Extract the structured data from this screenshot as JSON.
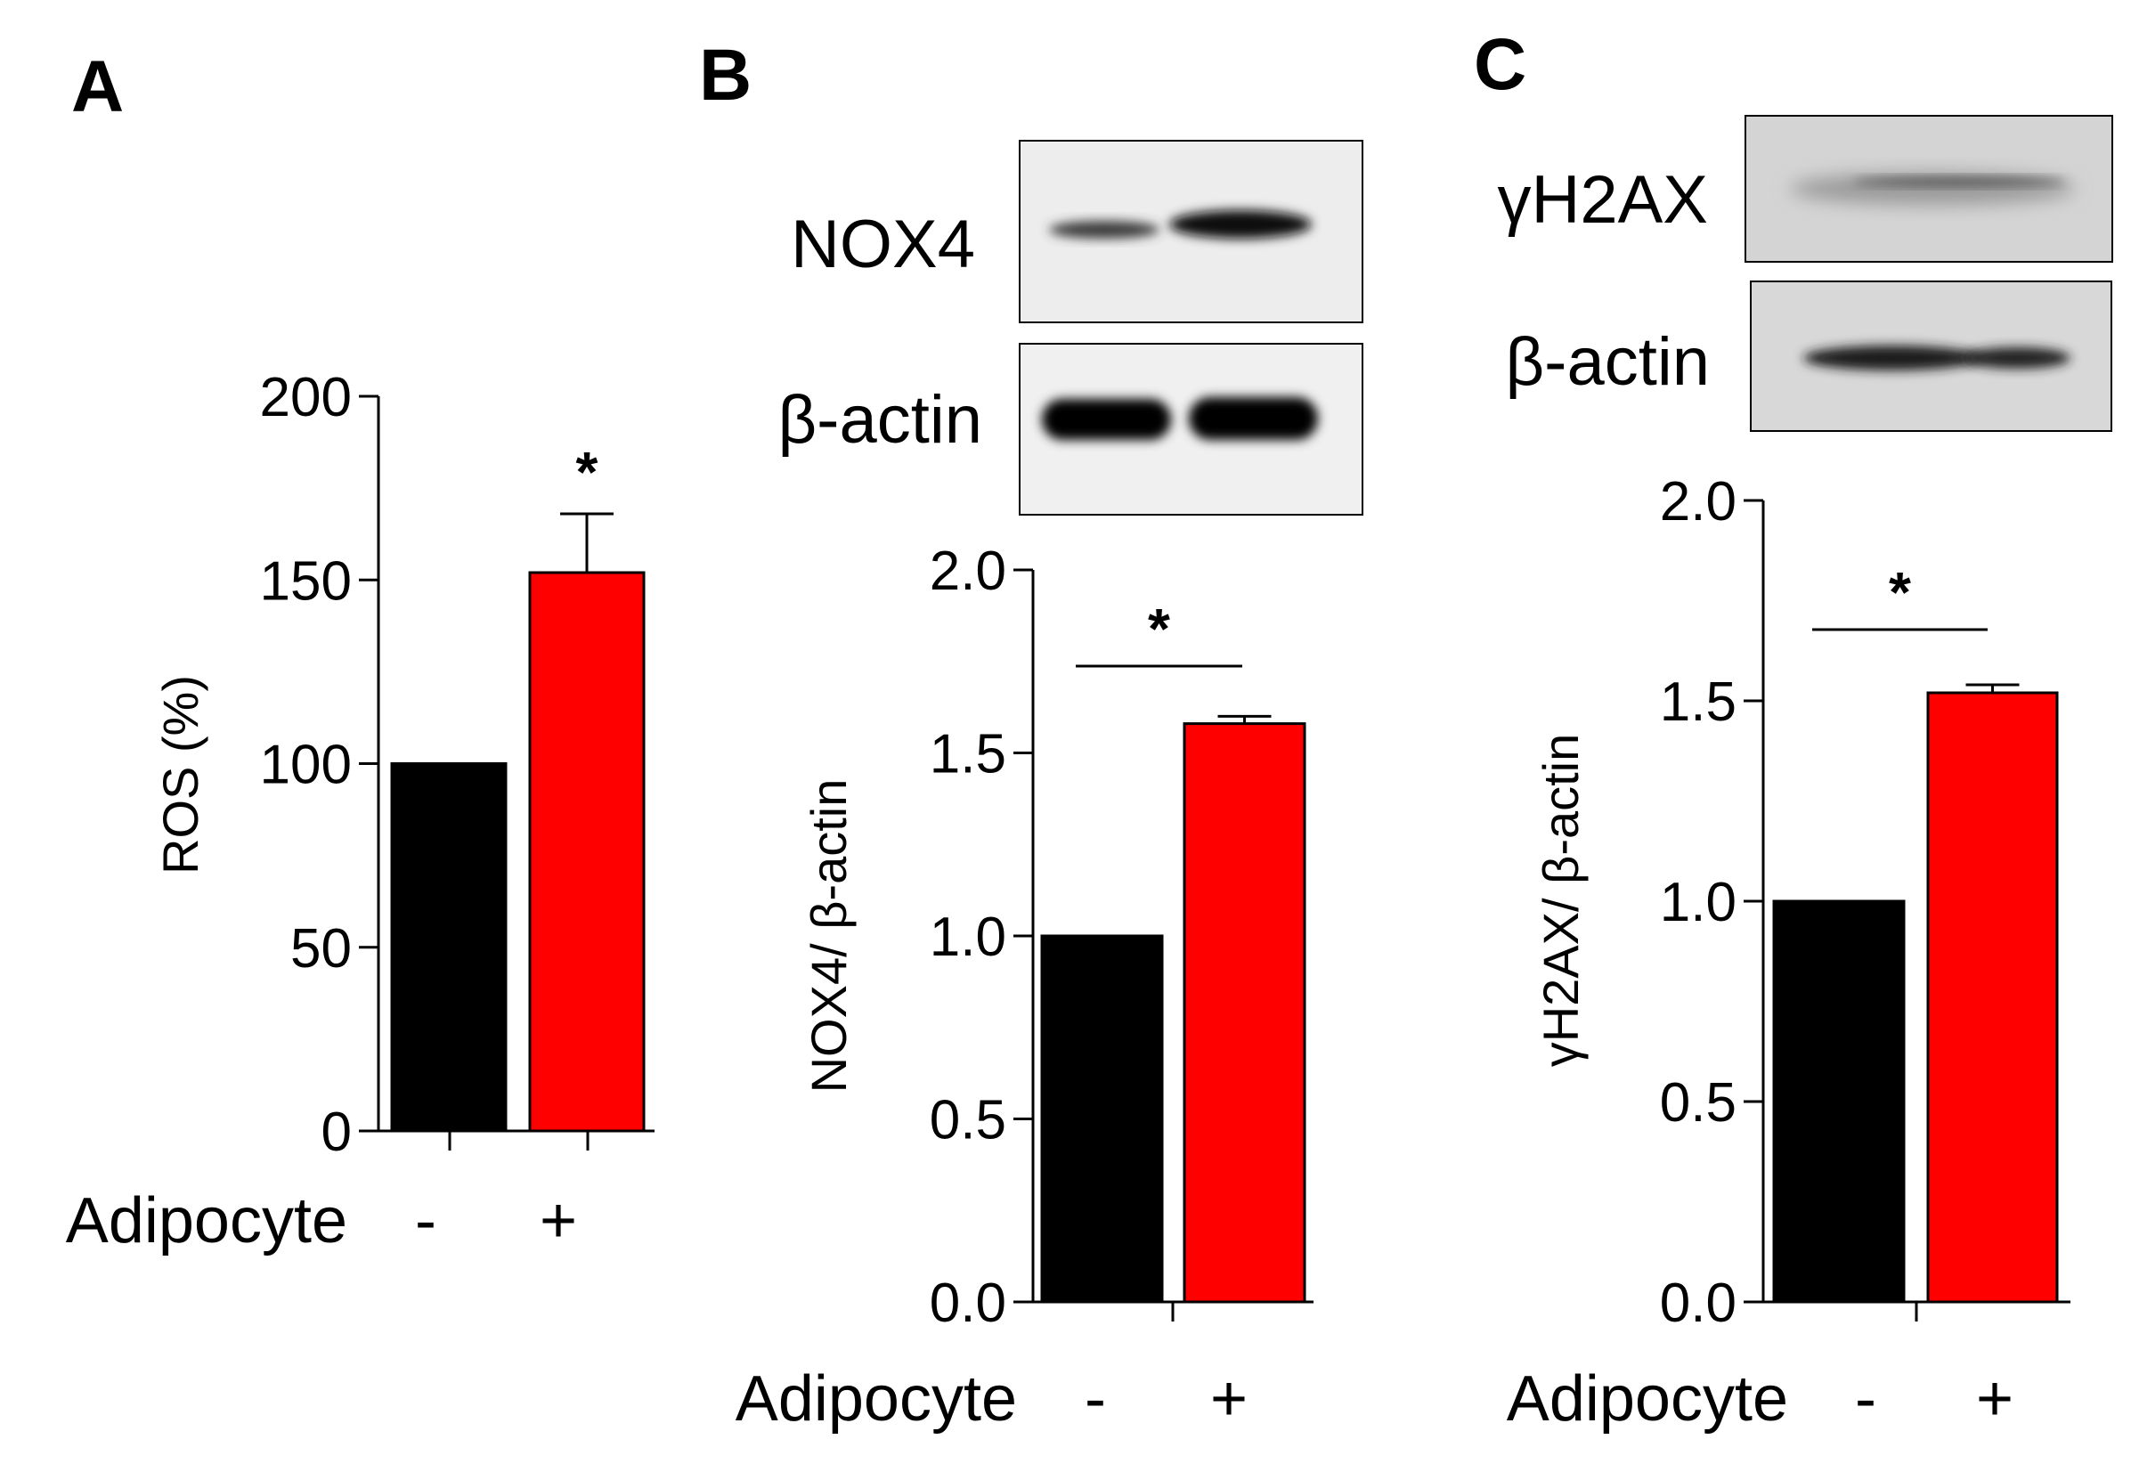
{
  "colors": {
    "control": "#000000",
    "treated": "#ff0000",
    "axis": "#000000"
  },
  "chart_data": [
    {
      "panel": "A",
      "type": "bar",
      "ylabel": "ROS (%)",
      "ylim": [
        0,
        200
      ],
      "yticks": [
        "0",
        "50",
        "100",
        "150",
        "200"
      ],
      "xlabel": "Adipocyte",
      "categories": [
        "-",
        "+"
      ],
      "values": [
        100,
        152
      ],
      "errors": [
        0,
        16
      ],
      "significance": "*"
    },
    {
      "panel": "B",
      "type": "bar",
      "blots": [
        "NOX4",
        "β-actin"
      ],
      "ylabel": "NOX4/ β-actin",
      "ylim": [
        0,
        2
      ],
      "yticks": [
        "0.0",
        "0.5",
        "1.0",
        "1.5",
        "2.0"
      ],
      "xlabel": "Adipocyte",
      "categories": [
        "-",
        "+"
      ],
      "values": [
        1.0,
        1.58
      ],
      "errors": [
        0,
        0.02
      ],
      "significance": "*"
    },
    {
      "panel": "C",
      "type": "bar",
      "blots": [
        "γH2AX",
        "β-actin"
      ],
      "ylabel": "γH2AX/ β-actin",
      "ylim": [
        0,
        2
      ],
      "yticks": [
        "0.0",
        "0.5",
        "1.0",
        "1.5",
        "2.0"
      ],
      "xlabel": "Adipocyte",
      "categories": [
        "-",
        "+"
      ],
      "values": [
        1.0,
        1.52
      ],
      "errors": [
        0,
        0.02
      ],
      "significance": "*"
    }
  ]
}
